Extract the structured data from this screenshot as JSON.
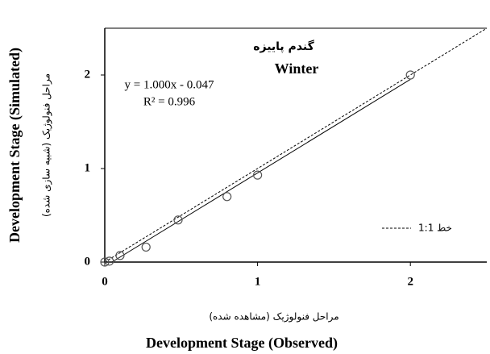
{
  "chart_data": {
    "type": "scatter",
    "title_fa": "گندم پاییزه",
    "title": "Winter",
    "equation": "y = 1.000x - 0.047",
    "r_squared": "R² = 0.996",
    "fit": {
      "slope": 1.0,
      "intercept": -0.047
    },
    "xlabel_fa": "مراحل فنولوژیک (مشاهده شده)",
    "xlabel": "Development Stage (Observed)",
    "ylabel_fa": "مراحل فنولوژیک (شبیه سازی شده)",
    "ylabel": "Development Stage (Simulated)",
    "legend_label": "خط 1:1",
    "x": [
      0,
      0.03,
      0.1,
      0.27,
      0.48,
      0.8,
      1.0,
      2.0
    ],
    "series": [
      {
        "name": "Winter",
        "color": "#555555",
        "values": [
          0,
          0.01,
          0.07,
          0.16,
          0.45,
          0.7,
          0.93,
          2.0
        ]
      }
    ],
    "xlim": [
      0,
      2.5
    ],
    "ylim": [
      0,
      2.5
    ],
    "xticks": [
      0,
      1,
      2
    ],
    "yticks": [
      0,
      1,
      2
    ]
  }
}
